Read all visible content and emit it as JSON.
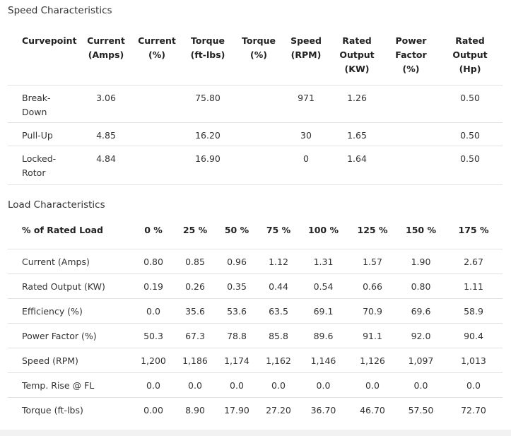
{
  "speed_section": {
    "title": "Speed Characteristics",
    "headers": [
      [
        "Curvepoint"
      ],
      [
        "Current",
        "(Amps)"
      ],
      [
        "Current",
        "(%)"
      ],
      [
        "Torque",
        "(ft-lbs)"
      ],
      [
        "Torque",
        "(%)"
      ],
      [
        "Speed",
        "(RPM)"
      ],
      [
        "Rated",
        "Output",
        "(KW)"
      ],
      [
        "Power",
        "Factor",
        "(%)"
      ],
      [
        "Rated",
        "Output",
        "(Hp)"
      ]
    ],
    "rows": [
      {
        "label": [
          "Break-",
          "Down"
        ],
        "cells": [
          "3.06",
          "",
          "75.80",
          "",
          "971",
          "1.26",
          "",
          "0.50"
        ]
      },
      {
        "label": [
          "Pull-Up"
        ],
        "cells": [
          "4.85",
          "",
          "16.20",
          "",
          "30",
          "1.65",
          "",
          "0.50"
        ]
      },
      {
        "label": [
          "Locked-",
          "Rotor"
        ],
        "cells": [
          "4.84",
          "",
          "16.90",
          "",
          "0",
          "1.64",
          "",
          "0.50"
        ]
      }
    ]
  },
  "load_section": {
    "title": "Load Characteristics",
    "headers": [
      "% of Rated Load",
      "0 %",
      "25 %",
      "50 %",
      "75 %",
      "100 %",
      "125 %",
      "150 %",
      "175 %"
    ],
    "rows": [
      {
        "label": "Current (Amps)",
        "cells": [
          "0.80",
          "0.85",
          "0.96",
          "1.12",
          "1.31",
          "1.57",
          "1.90",
          "2.67"
        ]
      },
      {
        "label": "Rated Output (KW)",
        "cells": [
          "0.19",
          "0.26",
          "0.35",
          "0.44",
          "0.54",
          "0.66",
          "0.80",
          "1.11"
        ]
      },
      {
        "label": "Efficiency (%)",
        "cells": [
          "0.0",
          "35.6",
          "53.6",
          "63.5",
          "69.1",
          "70.9",
          "69.6",
          "58.9"
        ]
      },
      {
        "label": "Power Factor (%)",
        "cells": [
          "50.3",
          "67.3",
          "78.8",
          "85.8",
          "89.6",
          "91.1",
          "92.0",
          "90.4"
        ]
      },
      {
        "label": "Speed (RPM)",
        "cells": [
          "1,200",
          "1,186",
          "1,174",
          "1,162",
          "1,146",
          "1,126",
          "1,097",
          "1,013"
        ]
      },
      {
        "label": "Temp. Rise @ FL",
        "cells": [
          "0.0",
          "0.0",
          "0.0",
          "0.0",
          "0.0",
          "0.0",
          "0.0",
          "0.0"
        ]
      },
      {
        "label": "Torque (ft-lbs)",
        "cells": [
          "0.00",
          "8.90",
          "17.90",
          "27.20",
          "36.70",
          "46.70",
          "57.50",
          "72.70"
        ]
      }
    ]
  }
}
